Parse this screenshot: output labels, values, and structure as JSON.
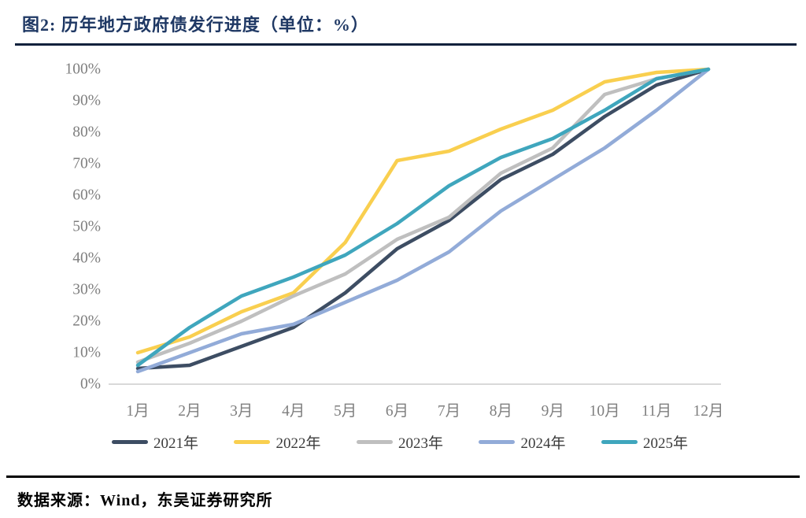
{
  "figure": {
    "title": "图2:  历年地方政府债发行进度（单位：%）",
    "source": "数据来源：Wind，东吴证券研究所"
  },
  "chart_data": {
    "type": "line",
    "title": "历年地方政府债发行进度（单位：%）",
    "xlabel": "",
    "ylabel": "",
    "ylim": [
      0,
      100
    ],
    "grid": false,
    "legend_position": "bottom",
    "categories": [
      "1月",
      "2月",
      "3月",
      "4月",
      "5月",
      "6月",
      "7月",
      "8月",
      "9月",
      "10月",
      "11月",
      "12月"
    ],
    "yticks": [
      "0%",
      "10%",
      "20%",
      "30%",
      "40%",
      "50%",
      "60%",
      "70%",
      "80%",
      "90%",
      "100%"
    ],
    "series": [
      {
        "name": "2021年",
        "color": "#3D4D63",
        "values": [
          5,
          6,
          12,
          18,
          29,
          43,
          52,
          65,
          73,
          85,
          95,
          100
        ]
      },
      {
        "name": "2022年",
        "color": "#F9CF4F",
        "values": [
          10,
          15,
          23,
          29,
          45,
          71,
          74,
          81,
          87,
          96,
          99,
          100
        ]
      },
      {
        "name": "2023年",
        "color": "#BFBFBF",
        "values": [
          7,
          13,
          20,
          28,
          35,
          46,
          53,
          67,
          75,
          92,
          97,
          100
        ]
      },
      {
        "name": "2024年",
        "color": "#92ABD8",
        "values": [
          4,
          10,
          16,
          19,
          26,
          33,
          42,
          55,
          65,
          75,
          87,
          100
        ]
      },
      {
        "name": "2025年",
        "color": "#3FA6BD",
        "values": [
          6,
          18,
          28,
          34,
          41,
          51,
          63,
          72,
          78,
          87,
          97,
          100
        ]
      }
    ],
    "axis_colors": {
      "tick_text": "#7f7f7f",
      "baseline": "#d9d9d9"
    }
  }
}
